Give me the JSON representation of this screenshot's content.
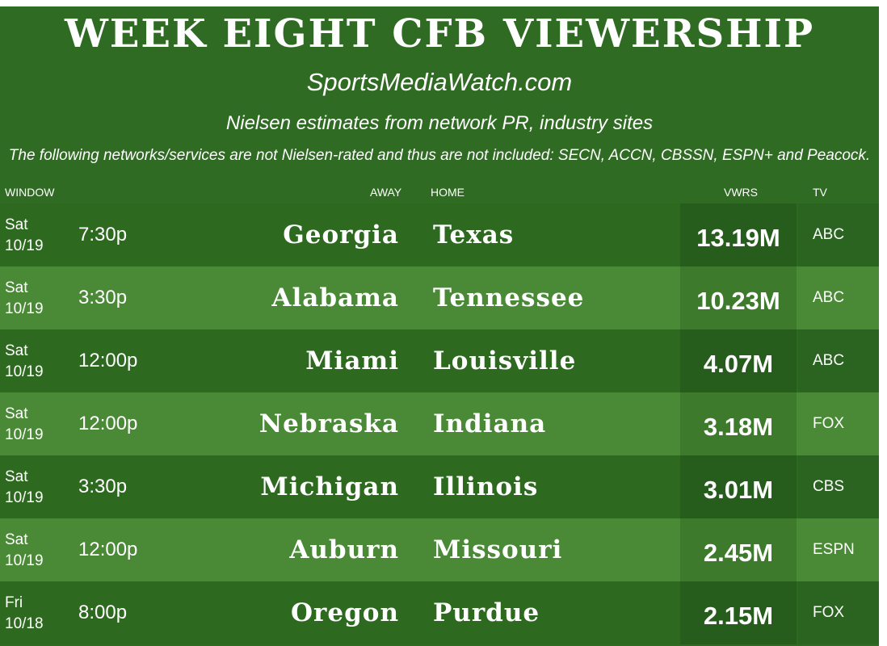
{
  "title": "WEEK EIGHT CFB VIEWERSHIP",
  "site": "SportsMediaWatch.com",
  "note_source": "Nielsen estimates from network PR, industry sites",
  "note_exclusions": "The following networks/services are not Nielsen-rated and thus are not included: SECN, ACCN, CBSSN, ESPN+ and Peacock.",
  "columns": {
    "window": "WINDOW",
    "away": "AWAY",
    "home": "HOME",
    "vwrs": "VWRS",
    "tv": "TV"
  },
  "rows": [
    {
      "day": "Sat",
      "date": "10/19",
      "time": "7:30p",
      "away": "Georgia",
      "home": "Texas",
      "vwrs": "13.19M",
      "tv": "ABC"
    },
    {
      "day": "Sat",
      "date": "10/19",
      "time": "3:30p",
      "away": "Alabama",
      "home": "Tennessee",
      "vwrs": "10.23M",
      "tv": "ABC"
    },
    {
      "day": "Sat",
      "date": "10/19",
      "time": "12:00p",
      "away": "Miami",
      "home": "Louisville",
      "vwrs": "4.07M",
      "tv": "ABC"
    },
    {
      "day": "Sat",
      "date": "10/19",
      "time": "12:00p",
      "away": "Nebraska",
      "home": "Indiana",
      "vwrs": "3.18M",
      "tv": "FOX"
    },
    {
      "day": "Sat",
      "date": "10/19",
      "time": "3:30p",
      "away": "Michigan",
      "home": "Illinois",
      "vwrs": "3.01M",
      "tv": "CBS"
    },
    {
      "day": "Sat",
      "date": "10/19",
      "time": "12:00p",
      "away": "Auburn",
      "home": "Missouri",
      "vwrs": "2.45M",
      "tv": "ESPN"
    },
    {
      "day": "Fri",
      "date": "10/18",
      "time": "8:00p",
      "away": "Oregon",
      "home": "Purdue",
      "vwrs": "2.15M",
      "tv": "FOX"
    }
  ]
}
